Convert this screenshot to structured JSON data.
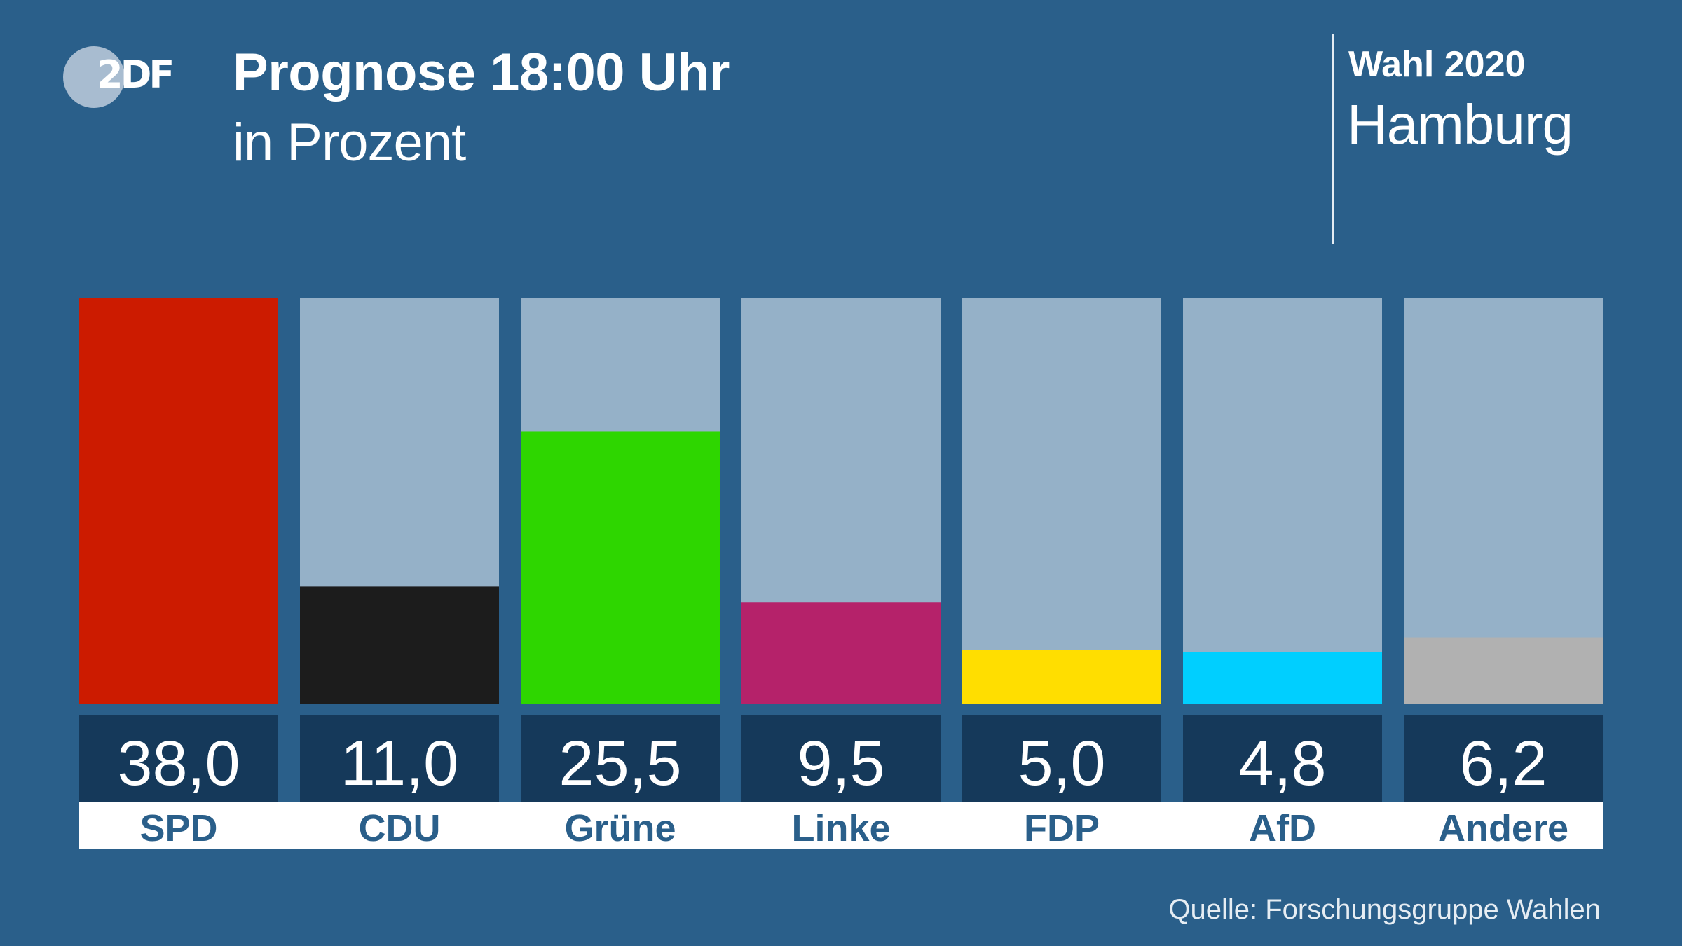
{
  "header": {
    "logo_text": "2DF",
    "title": "Prognose 18:00 Uhr",
    "subtitle": "in Prozent",
    "election": "Wahl 2020",
    "region": "Hamburg"
  },
  "source": "Quelle: Forschungsgruppe Wahlen",
  "chart_data": {
    "type": "bar",
    "categories": [
      "SPD",
      "CDU",
      "Grüne",
      "Linke",
      "FDP",
      "AfD",
      "Andere"
    ],
    "values": [
      38.0,
      11.0,
      25.5,
      9.5,
      5.0,
      4.8,
      6.2
    ],
    "value_labels": [
      "38,0",
      "11,0",
      "25,5",
      "9,5",
      "5,0",
      "4,8",
      "6,2"
    ],
    "colors": [
      "#cc1b00",
      "#1c1c1c",
      "#2ed600",
      "#b5226a",
      "#ffde00",
      "#00cfff",
      "#b1b1b1"
    ],
    "track_color": "#95b1c8",
    "label_box_color": "#15395a",
    "category_strip_color": "#ffffff",
    "category_text_color": "#2a5f8a",
    "ylim": [
      0,
      38.0
    ],
    "title": "Prognose 18:00 Uhr",
    "xlabel": "",
    "ylabel": ""
  }
}
